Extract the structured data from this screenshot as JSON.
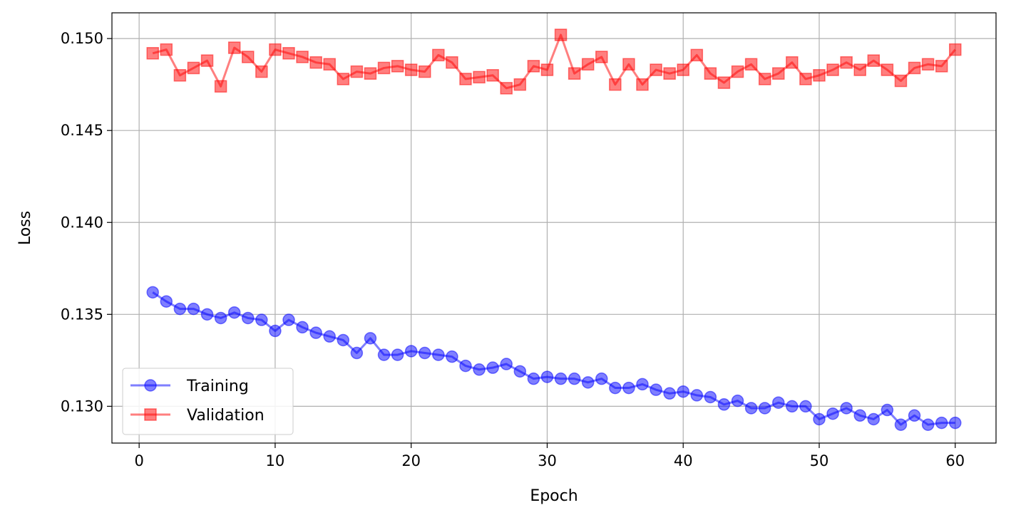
{
  "chart_data": {
    "type": "line",
    "title": "",
    "xlabel": "Epoch",
    "ylabel": "Loss",
    "xlim": [
      -2,
      63
    ],
    "ylim": [
      0.128,
      0.1514
    ],
    "xticks": [
      0,
      10,
      20,
      30,
      40,
      50,
      60
    ],
    "yticks": [
      0.13,
      0.135,
      0.14,
      0.145,
      0.15
    ],
    "ytick_labels": [
      "0.130",
      "0.135",
      "0.140",
      "0.145",
      "0.150"
    ],
    "grid": true,
    "legend_position": "lower-left",
    "x": [
      1,
      2,
      3,
      4,
      5,
      6,
      7,
      8,
      9,
      10,
      11,
      12,
      13,
      14,
      15,
      16,
      17,
      18,
      19,
      20,
      21,
      22,
      23,
      24,
      25,
      26,
      27,
      28,
      29,
      30,
      31,
      32,
      33,
      34,
      35,
      36,
      37,
      38,
      39,
      40,
      41,
      42,
      43,
      44,
      45,
      46,
      47,
      48,
      49,
      50,
      51,
      52,
      53,
      54,
      55,
      56,
      57,
      58,
      59,
      60
    ],
    "series": [
      {
        "name": "Training",
        "color": "#0000ff",
        "marker": "circle",
        "values": [
          0.1362,
          0.1357,
          0.1353,
          0.1353,
          0.135,
          0.1348,
          0.1351,
          0.1348,
          0.1347,
          0.1341,
          0.1347,
          0.1343,
          0.134,
          0.1338,
          0.1336,
          0.1329,
          0.1337,
          0.1328,
          0.1328,
          0.133,
          0.1329,
          0.1328,
          0.1327,
          0.1322,
          0.132,
          0.1321,
          0.1323,
          0.1319,
          0.1315,
          0.1316,
          0.1315,
          0.1315,
          0.1313,
          0.1315,
          0.131,
          0.131,
          0.1312,
          0.1309,
          0.1307,
          0.1308,
          0.1306,
          0.1305,
          0.1301,
          0.1303,
          0.1299,
          0.1299,
          0.1302,
          0.13,
          0.13,
          0.1293,
          0.1296,
          0.1299,
          0.1295,
          0.1293,
          0.1298,
          0.129,
          0.1295,
          0.129,
          0.1291,
          0.1291
        ]
      },
      {
        "name": "Validation",
        "color": "#ff0000",
        "marker": "square",
        "values": [
          0.1492,
          0.1494,
          0.148,
          0.1484,
          0.1488,
          0.1474,
          0.1495,
          0.149,
          0.1482,
          0.1494,
          0.1492,
          0.149,
          0.1487,
          0.1486,
          0.1478,
          0.1482,
          0.1481,
          0.1484,
          0.1485,
          0.1483,
          0.1482,
          0.1491,
          0.1487,
          0.1478,
          0.1479,
          0.148,
          0.1473,
          0.1475,
          0.1485,
          0.1483,
          0.1502,
          0.1481,
          0.1486,
          0.149,
          0.1475,
          0.1486,
          0.1475,
          0.1483,
          0.1481,
          0.1483,
          0.1491,
          0.1481,
          0.1476,
          0.1482,
          0.1486,
          0.1478,
          0.1481,
          0.1487,
          0.1478,
          0.148,
          0.1483,
          0.1487,
          0.1483,
          0.1488,
          0.1483,
          0.1477,
          0.1484,
          0.1486,
          0.1485,
          0.1494
        ]
      }
    ]
  }
}
